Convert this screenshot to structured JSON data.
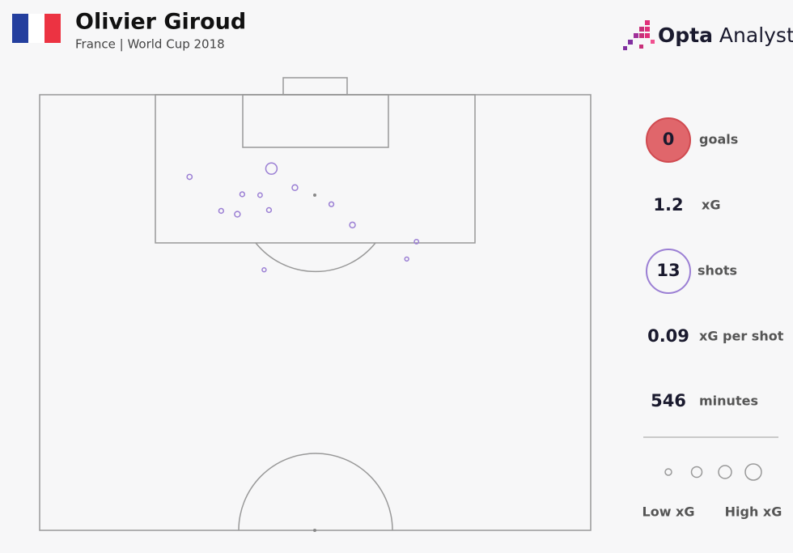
{
  "header": {
    "title": "Olivier Giroud",
    "subtitle": "France | World Cup 2018",
    "brand": "Opta",
    "brand_suffix": "Analyst"
  },
  "stats": [
    {
      "value": 0,
      "label": "goals"
    },
    {
      "value": 1.2,
      "label": "xG"
    },
    {
      "value": 13,
      "label": "shots"
    },
    {
      "value": 0.09,
      "label": "xG per shot"
    },
    {
      "value": 546,
      "label": "minutes"
    }
  ],
  "legend": {
    "low": "Low xG",
    "high": "High xG"
  },
  "chart_data": {
    "type": "scatter",
    "color": "#9b7fd4",
    "xlim": [
      0,
      68
    ],
    "ylim": [
      0,
      52.5
    ],
    "x": [
      18.5,
      28.6,
      25.0,
      27.2,
      31.5,
      36.0,
      22.4,
      24.4,
      28.3,
      38.6,
      46.5,
      45.3,
      27.7
    ],
    "y": [
      9.9,
      8.9,
      12.0,
      12.1,
      11.2,
      13.2,
      14.0,
      14.4,
      13.9,
      15.7,
      17.7,
      19.8,
      21.1
    ],
    "sizes": [
      0.08,
      0.4,
      0.07,
      0.06,
      0.1,
      0.07,
      0.07,
      0.1,
      0.07,
      0.1,
      0.06,
      0.05,
      0.05
    ]
  }
}
